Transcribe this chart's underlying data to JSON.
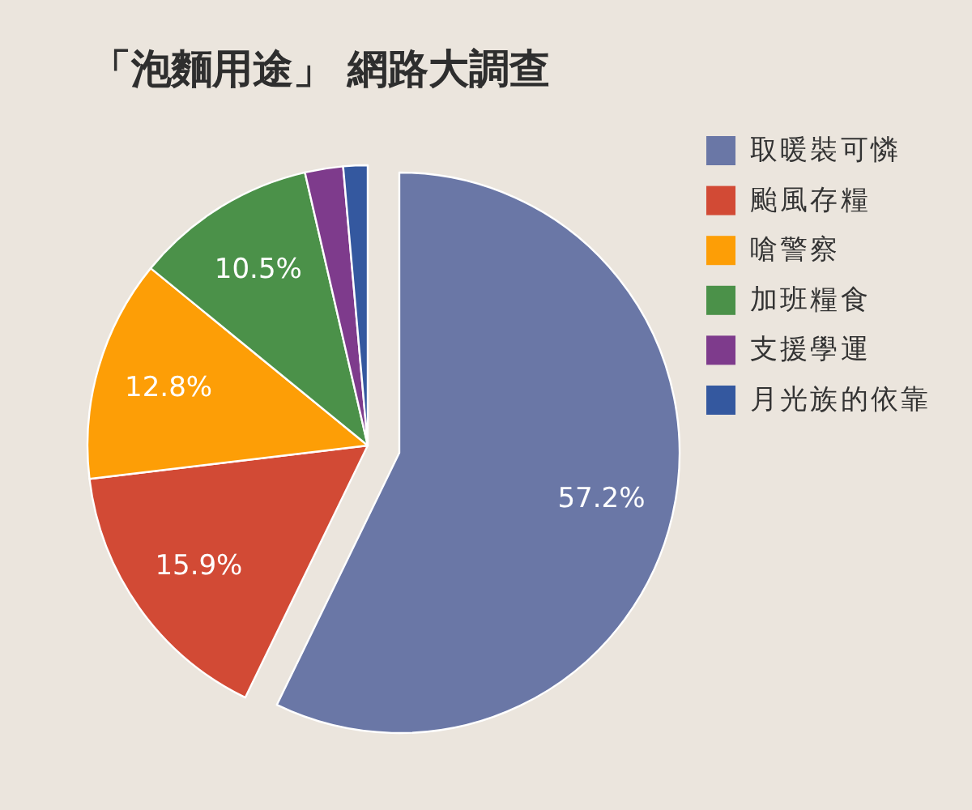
{
  "chart_data": {
    "type": "pie",
    "title": "「泡麵用途」 網路大調查",
    "categories": [
      "取暖裝可憐",
      "颱風存糧",
      "嗆警察",
      "加班糧食",
      "支援學運",
      "月光族的依靠"
    ],
    "values": [
      57.2,
      15.9,
      12.8,
      10.5,
      2.2,
      1.4
    ],
    "colors": [
      "#6a77a6",
      "#d24a35",
      "#fd9e06",
      "#4b9149",
      "#7e3b8c",
      "#34589f"
    ],
    "value_labels": [
      "57.2%",
      "15.9%",
      "12.8%",
      "10.5%",
      null,
      null
    ],
    "legend": "right"
  }
}
